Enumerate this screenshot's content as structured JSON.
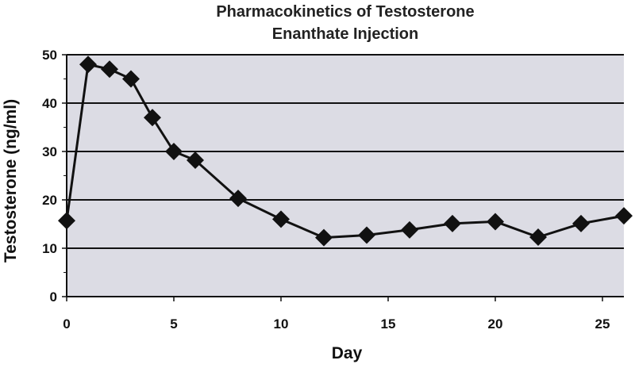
{
  "chart_data": {
    "type": "line",
    "title_lines": [
      "Pharmacokinetics of Testosterone",
      "Enanthate Injection"
    ],
    "xlabel": "Day",
    "ylabel": "Testosterone (ng/ml)",
    "xlim": [
      0,
      26
    ],
    "ylim": [
      0,
      50
    ],
    "x_ticks": [
      "0",
      "5",
      "10",
      "15",
      "20",
      "25"
    ],
    "y_ticks": [
      "0",
      "10",
      "20",
      "30",
      "40",
      "50"
    ],
    "grid": "horizontal",
    "plot_background": "#dcdce4",
    "series": [
      {
        "marker": "diamond",
        "color": "#111111",
        "points": [
          {
            "x": 0,
            "y": 15.7
          },
          {
            "x": 1,
            "y": 48.0
          },
          {
            "x": 2,
            "y": 47.0
          },
          {
            "x": 3,
            "y": 45.0
          },
          {
            "x": 4,
            "y": 37.0
          },
          {
            "x": 5,
            "y": 30.0
          },
          {
            "x": 6,
            "y": 28.2
          },
          {
            "x": 8,
            "y": 20.3
          },
          {
            "x": 10,
            "y": 16.0
          },
          {
            "x": 12,
            "y": 12.2
          },
          {
            "x": 14,
            "y": 12.7
          },
          {
            "x": 16,
            "y": 13.8
          },
          {
            "x": 18,
            "y": 15.1
          },
          {
            "x": 20,
            "y": 15.5
          },
          {
            "x": 22,
            "y": 12.3
          },
          {
            "x": 24,
            "y": 15.1
          },
          {
            "x": 26,
            "y": 16.7
          }
        ]
      }
    ]
  }
}
